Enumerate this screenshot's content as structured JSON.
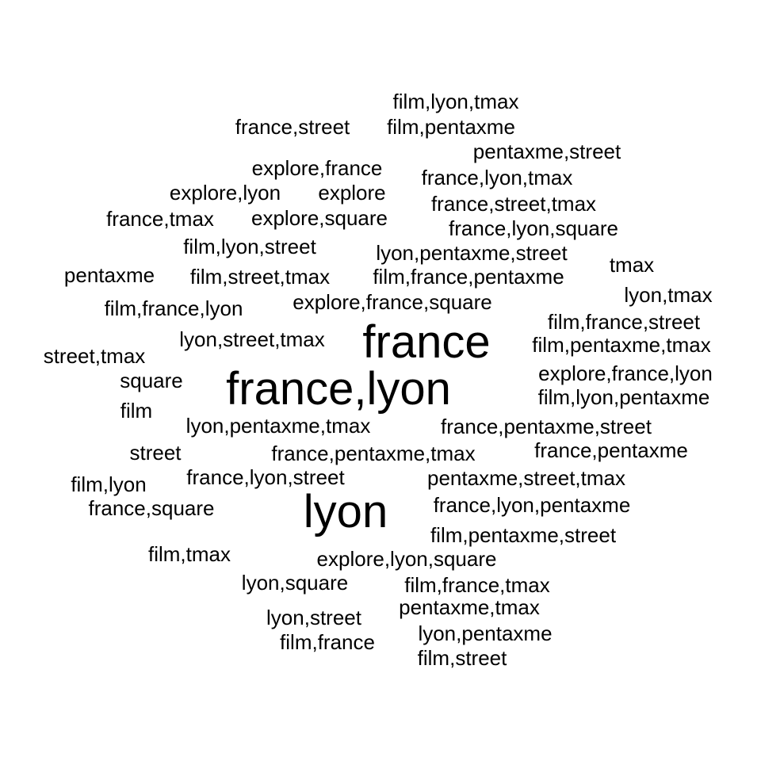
{
  "colors": {
    "background": "#ffffff",
    "text": "#000000"
  },
  "words": [
    {
      "text": "film,lyon,tmax",
      "weight": 1
    },
    {
      "text": "france,street",
      "weight": 1
    },
    {
      "text": "film,pentaxme",
      "weight": 1
    },
    {
      "text": "pentaxme,street",
      "weight": 1
    },
    {
      "text": "explore,france",
      "weight": 1
    },
    {
      "text": "france,lyon,tmax",
      "weight": 1
    },
    {
      "text": "explore,lyon",
      "weight": 1
    },
    {
      "text": "explore",
      "weight": 1
    },
    {
      "text": "france,street,tmax",
      "weight": 1
    },
    {
      "text": "france,tmax",
      "weight": 1
    },
    {
      "text": "explore,square",
      "weight": 1
    },
    {
      "text": "france,lyon,square",
      "weight": 1
    },
    {
      "text": "film,lyon,street",
      "weight": 1
    },
    {
      "text": "lyon,pentaxme,street",
      "weight": 1
    },
    {
      "text": "tmax",
      "weight": 1
    },
    {
      "text": "pentaxme",
      "weight": 1
    },
    {
      "text": "film,street,tmax",
      "weight": 1
    },
    {
      "text": "film,france,pentaxme",
      "weight": 1
    },
    {
      "text": "lyon,tmax",
      "weight": 1
    },
    {
      "text": "film,france,lyon",
      "weight": 1
    },
    {
      "text": "explore,france,square",
      "weight": 1
    },
    {
      "text": "film,france,street",
      "weight": 1
    },
    {
      "text": "france",
      "weight": 2
    },
    {
      "text": "lyon,street,tmax",
      "weight": 1
    },
    {
      "text": "film,pentaxme,tmax",
      "weight": 1
    },
    {
      "text": "street,tmax",
      "weight": 1
    },
    {
      "text": "explore,france,lyon",
      "weight": 1
    },
    {
      "text": "square",
      "weight": 1
    },
    {
      "text": "france,lyon",
      "weight": 2
    },
    {
      "text": "film,lyon,pentaxme",
      "weight": 1
    },
    {
      "text": "film",
      "weight": 1
    },
    {
      "text": "lyon,pentaxme,tmax",
      "weight": 1
    },
    {
      "text": "france,pentaxme,street",
      "weight": 1
    },
    {
      "text": "street",
      "weight": 1
    },
    {
      "text": "france,pentaxme,tmax",
      "weight": 1
    },
    {
      "text": "france,pentaxme",
      "weight": 1
    },
    {
      "text": "film,lyon",
      "weight": 1
    },
    {
      "text": "france,lyon,street",
      "weight": 1
    },
    {
      "text": "pentaxme,street,tmax",
      "weight": 1
    },
    {
      "text": "france,square",
      "weight": 1
    },
    {
      "text": "lyon",
      "weight": 2
    },
    {
      "text": "france,lyon,pentaxme",
      "weight": 1
    },
    {
      "text": "film,pentaxme,street",
      "weight": 1
    },
    {
      "text": "film,tmax",
      "weight": 1
    },
    {
      "text": "explore,lyon,square",
      "weight": 1
    },
    {
      "text": "lyon,square",
      "weight": 1
    },
    {
      "text": "film,france,tmax",
      "weight": 1
    },
    {
      "text": "pentaxme,tmax",
      "weight": 1
    },
    {
      "text": "lyon,street",
      "weight": 1
    },
    {
      "text": "lyon,pentaxme",
      "weight": 1
    },
    {
      "text": "film,france",
      "weight": 1
    },
    {
      "text": "film,street",
      "weight": 1
    }
  ]
}
